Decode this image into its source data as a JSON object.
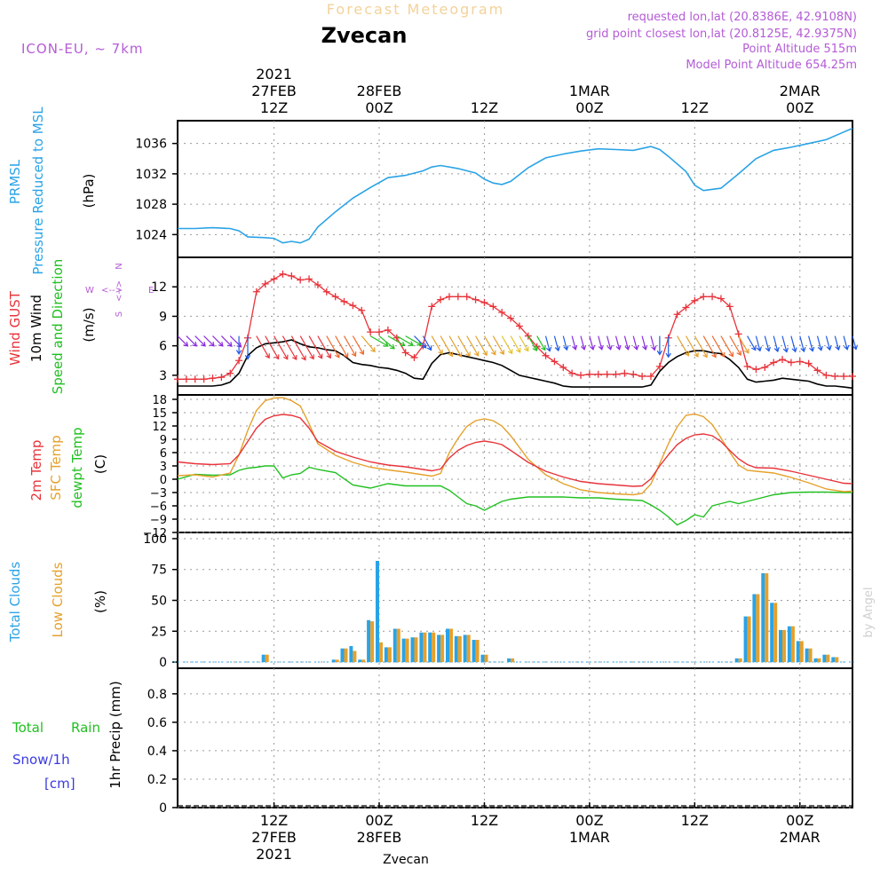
{
  "header": {
    "subtitle": "Forecast Meteogram",
    "location": "Zvecan",
    "model": "ICON-EU, ~ 7km",
    "requested": "requested lon,lat (20.8386E, 42.9108N)",
    "grid_point": "grid point closest lon,lat (20.8125E, 42.9375N)",
    "point_alt": "Point Altitude 515m",
    "model_alt": "Model Point Altitude 654.25m",
    "credit": "by Angel",
    "footer_location": "Zvecan"
  },
  "colors": {
    "pressure": "#2aa3e6",
    "gust": "#e8333a",
    "wind": "#000000",
    "sfc": "#e5a12c",
    "temp": "#e8333a",
    "dew": "#21c021",
    "total_clouds": "#2aa3e6",
    "low_clouds": "#e5a12c",
    "rain": "#21c021",
    "snow": "#3a3ae0",
    "label": "#b55bd6"
  },
  "time_axis": {
    "hours_span": [
      0,
      77
    ],
    "ticks": [
      {
        "h": 11,
        "top": [
          "2021",
          "27FEB",
          "12Z"
        ],
        "bottom": [
          "12Z",
          "27FEB",
          "2021"
        ]
      },
      {
        "h": 23,
        "top": [
          "28FEB",
          "00Z"
        ],
        "bottom": [
          "00Z",
          "28FEB"
        ]
      },
      {
        "h": 35,
        "top": [
          "12Z"
        ],
        "bottom": [
          "12Z"
        ]
      },
      {
        "h": 47,
        "top": [
          "1MAR",
          "00Z"
        ],
        "bottom": [
          "00Z",
          "1MAR"
        ]
      },
      {
        "h": 59,
        "top": [
          "12Z"
        ],
        "bottom": [
          "12Z"
        ]
      },
      {
        "h": 71,
        "top": [
          "2MAR",
          "00Z"
        ],
        "bottom": [
          "00Z",
          "2MAR"
        ]
      }
    ]
  },
  "chart_data": [
    {
      "type": "line",
      "title": "PRMSL Pressure Reduced to MSL",
      "ylabel_lines": [
        "PRMSL",
        "Pressure Reduced to MSL"
      ],
      "unit": "(hPa)",
      "ylim": [
        1021,
        1039
      ],
      "yticks": [
        1024,
        1028,
        1032,
        1036
      ],
      "x_hours": [
        0,
        2,
        4,
        6,
        7,
        8,
        10,
        11,
        12,
        13,
        14,
        15,
        16,
        18,
        20,
        22,
        24,
        26,
        28,
        29,
        30,
        32,
        34,
        35,
        36,
        37,
        38,
        40,
        42,
        44,
        46,
        48,
        50,
        52,
        54,
        55,
        56,
        58,
        59,
        60,
        62,
        64,
        66,
        68,
        70,
        72,
        74,
        76,
        77
      ],
      "series": [
        {
          "name": "PRMSL",
          "values": [
            1024.8,
            1024.8,
            1024.9,
            1024.8,
            1024.5,
            1023.7,
            1023.6,
            1023.5,
            1022.9,
            1023.1,
            1022.9,
            1023.4,
            1025.0,
            1027.0,
            1028.8,
            1030.2,
            1031.5,
            1031.8,
            1032.4,
            1032.9,
            1033.1,
            1032.7,
            1032.1,
            1031.3,
            1030.8,
            1030.6,
            1031.0,
            1032.8,
            1034.1,
            1034.6,
            1035.0,
            1035.3,
            1035.2,
            1035.1,
            1035.6,
            1035.2,
            1034.3,
            1032.3,
            1030.5,
            1029.8,
            1030.1,
            1032.0,
            1034.0,
            1035.1,
            1035.5,
            1036.0,
            1036.5,
            1037.5,
            1038.0
          ]
        }
      ]
    },
    {
      "type": "line",
      "title": "Wind GUST / 10m Wind Speed and Direction",
      "ylabel_lines": [
        "Wind GUST",
        "10m Wind",
        "Speed and Direction"
      ],
      "unit": "(m/s)",
      "ylim": [
        1,
        15
      ],
      "yticks": [
        3,
        6,
        9,
        12
      ],
      "compass": {
        "n": "N",
        "e": "E",
        "s": "S",
        "w": "W",
        "arrow": "<-->"
      },
      "x_hours": [
        0,
        1,
        2,
        3,
        4,
        5,
        6,
        7,
        8,
        9,
        10,
        11,
        12,
        13,
        14,
        15,
        16,
        17,
        18,
        19,
        20,
        21,
        22,
        23,
        24,
        25,
        26,
        27,
        28,
        29,
        30,
        31,
        32,
        33,
        34,
        35,
        36,
        37,
        38,
        39,
        40,
        41,
        42,
        43,
        44,
        45,
        46,
        47,
        48,
        49,
        50,
        51,
        52,
        53,
        54,
        55,
        56,
        57,
        58,
        59,
        60,
        61,
        62,
        63,
        64,
        65,
        66,
        67,
        68,
        69,
        70,
        71,
        72,
        73,
        74,
        75,
        76,
        77
      ],
      "series": [
        {
          "name": "Wind GUST",
          "values": [
            2.6,
            2.6,
            2.6,
            2.6,
            2.7,
            2.8,
            3.2,
            4.5,
            6.8,
            11.5,
            12.3,
            12.8,
            13.3,
            13.1,
            12.7,
            12.8,
            12.2,
            11.5,
            11.0,
            10.5,
            10.1,
            9.6,
            7.4,
            7.4,
            7.6,
            6.8,
            5.3,
            4.8,
            6.0,
            10.0,
            10.7,
            11.0,
            11.0,
            11.0,
            10.7,
            10.4,
            10.0,
            9.4,
            8.8,
            8.0,
            7.0,
            5.9,
            5.0,
            4.4,
            3.8,
            3.2,
            3.0,
            3.1,
            3.1,
            3.1,
            3.1,
            3.2,
            3.1,
            2.9,
            2.9,
            3.9,
            6.8,
            9.2,
            9.9,
            10.6,
            11.0,
            11.0,
            10.8,
            10.0,
            7.2,
            3.9,
            3.6,
            3.8,
            4.3,
            4.6,
            4.3,
            4.4,
            4.2,
            3.5,
            3.0,
            2.9,
            2.9,
            2.9
          ]
        },
        {
          "name": "10m Wind",
          "values": [
            1.9,
            1.9,
            1.9,
            1.9,
            1.9,
            2.0,
            2.3,
            3.2,
            5.0,
            5.8,
            6.2,
            6.3,
            6.4,
            6.6,
            6.2,
            5.9,
            5.8,
            5.6,
            5.5,
            5.0,
            4.3,
            4.1,
            4.0,
            3.8,
            3.7,
            3.5,
            3.2,
            2.7,
            2.6,
            4.2,
            5.1,
            5.3,
            5.1,
            4.9,
            4.7,
            4.5,
            4.3,
            4.0,
            3.5,
            3.0,
            2.8,
            2.6,
            2.4,
            2.2,
            1.9,
            1.8,
            1.8,
            1.8,
            1.8,
            1.8,
            1.8,
            1.8,
            1.8,
            1.8,
            2.0,
            3.4,
            4.3,
            4.9,
            5.3,
            5.5,
            5.5,
            5.3,
            5.2,
            4.6,
            3.8,
            2.6,
            2.3,
            2.4,
            2.5,
            2.7,
            2.6,
            2.5,
            2.4,
            2.1,
            1.9,
            1.9,
            1.8,
            1.7
          ]
        }
      ],
      "wind_dirs_from_deg": [
        315,
        315,
        315,
        315,
        315,
        315,
        315,
        0,
        0,
        330,
        330,
        330,
        330,
        330,
        330,
        330,
        330,
        330,
        330,
        330,
        330,
        320,
        300,
        310,
        300,
        300,
        300,
        315,
        330,
        330,
        330,
        330,
        330,
        330,
        330,
        330,
        330,
        330,
        330,
        330,
        330,
        330,
        345,
        345,
        345,
        345,
        345,
        345,
        345,
        345,
        345,
        345,
        345,
        345,
        345,
        0,
        0,
        330,
        330,
        330,
        330,
        330,
        330,
        330,
        330,
        330,
        345,
        345,
        345,
        345,
        345,
        345,
        345,
        345,
        345,
        345,
        345,
        345
      ],
      "wind_arrow_colors": [
        "#8a2be2",
        "#8a2be2",
        "#8a2be2",
        "#8a2be2",
        "#8a2be2",
        "#8a2be2",
        "#8a2be2",
        "#1e5ae6",
        "#1e5ae6",
        "#e8333a",
        "#e8333a",
        "#e8333a",
        "#e8333a",
        "#e8333a",
        "#e8333a",
        "#e8333a",
        "#e8333a",
        "#ee6a2c",
        "#ee6a2c",
        "#ee6a2c",
        "#ee6a2c",
        "#e5a12c",
        "#21c021",
        "#21c021",
        "#21c021",
        "#21c021",
        "#21c021",
        "#1e5ae6",
        "#1e5ae6",
        "#e5a12c",
        "#e5a12c",
        "#e5a12c",
        "#e5a12c",
        "#e5a12c",
        "#e5a12c",
        "#e5a12c",
        "#e5a12c",
        "#e5c42c",
        "#e5c42c",
        "#e5c42c",
        "#21c021",
        "#21c021",
        "#1e5ae6",
        "#1e5ae6",
        "#1e5ae6",
        "#8a2be2",
        "#8a2be2",
        "#8a2be2",
        "#8a2be2",
        "#8a2be2",
        "#8a2be2",
        "#8a2be2",
        "#8a2be2",
        "#8a2be2",
        "#8a2be2",
        "#1e5ae6",
        "#1e5ae6",
        "#e5a12c",
        "#e5a12c",
        "#e5a12c",
        "#ee6a2c",
        "#ee6a2c",
        "#ee6a2c",
        "#ee6a2c",
        "#e5a12c",
        "#1e5ae6",
        "#1e5ae6",
        "#1e5ae6",
        "#1e5ae6",
        "#1e5ae6",
        "#1e5ae6",
        "#1e5ae6",
        "#1e5ae6",
        "#1e5ae6",
        "#1e5ae6",
        "#1e5ae6",
        "#1e5ae6",
        "#1e5ae6"
      ]
    },
    {
      "type": "line",
      "title": "2m Temp / SFC Temp / dewpt Temp",
      "ylabel_lines": [
        "2m Temp",
        "SFC Temp",
        "dewpt Temp"
      ],
      "unit": "(C)",
      "ylim": [
        -12,
        19
      ],
      "yticks": [
        -12,
        -9,
        -6,
        -3,
        0,
        3,
        6,
        9,
        12,
        15,
        18
      ],
      "x_hours": [
        0,
        2,
        4,
        6,
        7,
        8,
        9,
        10,
        11,
        12,
        13,
        14,
        15,
        16,
        18,
        20,
        22,
        24,
        26,
        28,
        29,
        30,
        31,
        32,
        33,
        34,
        35,
        36,
        37,
        38,
        40,
        42,
        44,
        46,
        48,
        50,
        52,
        53,
        54,
        55,
        56,
        57,
        58,
        59,
        60,
        61,
        62,
        63,
        64,
        65,
        66,
        68,
        70,
        72,
        74,
        76,
        77
      ],
      "series": [
        {
          "name": "2m Temp",
          "values": [
            3.9,
            3.5,
            3.3,
            3.5,
            5.5,
            8.5,
            11.5,
            13.5,
            14.3,
            14.6,
            14.4,
            13.8,
            11.5,
            8.5,
            6.3,
            5.0,
            3.9,
            3.2,
            2.8,
            2.2,
            1.9,
            2.3,
            4.8,
            6.5,
            7.6,
            8.3,
            8.6,
            8.3,
            7.8,
            6.5,
            3.8,
            1.8,
            0.5,
            -0.5,
            -1.0,
            -1.3,
            -1.6,
            -1.5,
            0.1,
            3.0,
            5.5,
            7.8,
            9.2,
            10.0,
            10.2,
            9.8,
            8.5,
            6.5,
            4.6,
            3.3,
            2.6,
            2.5,
            1.8,
            0.9,
            0.0,
            -0.9,
            -1.0
          ]
        },
        {
          "name": "SFC Temp",
          "values": [
            0.8,
            1.0,
            0.5,
            1.4,
            5.5,
            11.0,
            15.5,
            17.7,
            18.3,
            18.4,
            17.7,
            16.5,
            12.5,
            8.0,
            5.4,
            3.8,
            2.7,
            2.1,
            1.6,
            1.0,
            0.7,
            1.3,
            6.0,
            9.2,
            11.9,
            13.2,
            13.6,
            13.2,
            12.0,
            9.8,
            4.5,
            1.0,
            -1.0,
            -2.4,
            -3.0,
            -3.3,
            -3.5,
            -3.2,
            -1.1,
            3.5,
            8.0,
            11.8,
            14.4,
            14.7,
            14.1,
            12.3,
            9.3,
            6.1,
            3.2,
            2.0,
            1.8,
            1.4,
            0.4,
            -0.8,
            -2.2,
            -2.8,
            -2.7
          ]
        },
        {
          "name": "dewpt Temp",
          "values": [
            0.0,
            1.1,
            0.9,
            1.0,
            2.0,
            2.5,
            2.7,
            3.0,
            3.0,
            0.3,
            1.0,
            1.3,
            2.7,
            2.2,
            1.5,
            -1.3,
            -2.0,
            -1.0,
            -1.5,
            -1.5,
            -1.5,
            -1.5,
            -2.5,
            -4.0,
            -5.5,
            -6.0,
            -7.0,
            -6.0,
            -5.0,
            -4.5,
            -4.0,
            -4.0,
            -4.0,
            -4.2,
            -4.2,
            -4.5,
            -4.7,
            -4.8,
            -5.8,
            -7.0,
            -8.5,
            -10.3,
            -9.3,
            -8.0,
            -8.5,
            -6.0,
            -5.5,
            -5.0,
            -5.5,
            -5.0,
            -4.5,
            -3.5,
            -3.0,
            -2.9,
            -2.9,
            -3.0,
            -3.0
          ]
        }
      ]
    },
    {
      "type": "bar",
      "title": "Total Clouds / Low Clouds",
      "ylabel_lines": [
        "Total Clouds",
        "Low Clouds"
      ],
      "unit": "(%)",
      "ylim": [
        -5,
        105
      ],
      "yticks": [
        0,
        25,
        50,
        75,
        100
      ],
      "x_hours": [
        0,
        1,
        2,
        3,
        4,
        5,
        6,
        7,
        8,
        9,
        10,
        11,
        12,
        13,
        14,
        15,
        16,
        17,
        18,
        19,
        20,
        21,
        22,
        23,
        24,
        25,
        26,
        27,
        28,
        29,
        30,
        31,
        32,
        33,
        34,
        35,
        36,
        37,
        38,
        39,
        40,
        41,
        42,
        43,
        44,
        45,
        46,
        47,
        48,
        49,
        50,
        51,
        52,
        53,
        54,
        55,
        56,
        57,
        58,
        59,
        60,
        61,
        62,
        63,
        64,
        65,
        66,
        67,
        68,
        69,
        70,
        71,
        72,
        73,
        74,
        75,
        76,
        77
      ],
      "series": [
        {
          "name": "Total Clouds",
          "values": [
            0,
            0,
            0,
            0,
            0,
            0,
            0,
            0,
            0,
            0,
            6,
            0,
            0,
            0,
            0,
            0,
            0,
            0,
            2,
            11,
            13,
            2,
            34,
            82,
            12,
            27,
            19,
            20,
            24,
            24,
            22,
            27,
            21,
            22,
            18,
            6,
            0,
            0,
            3,
            0,
            0,
            0,
            0,
            0,
            0,
            0,
            0,
            0,
            0,
            0,
            0,
            0,
            0,
            0,
            0,
            0,
            0,
            0,
            0,
            0,
            0,
            0,
            0,
            0,
            3,
            37,
            55,
            72,
            48,
            26,
            29,
            17,
            11,
            3,
            6,
            4,
            0,
            0
          ]
        },
        {
          "name": "Low Clouds",
          "values": [
            0,
            0,
            0,
            0,
            0,
            0,
            0,
            0,
            0,
            0,
            6,
            0,
            0,
            0,
            0,
            0,
            0,
            0,
            2,
            11,
            9,
            2,
            33,
            16,
            12,
            27,
            19,
            20,
            24,
            24,
            22,
            27,
            21,
            22,
            18,
            6,
            0,
            0,
            3,
            0,
            0,
            0,
            0,
            0,
            0,
            0,
            0,
            0,
            0,
            0,
            0,
            0,
            0,
            0,
            0,
            0,
            0,
            0,
            0,
            0,
            0,
            0,
            0,
            0,
            3,
            37,
            55,
            72,
            48,
            26,
            29,
            17,
            11,
            3,
            6,
            4,
            0,
            0
          ]
        }
      ]
    },
    {
      "type": "bar",
      "title": "1hr Precip (mm)",
      "ylabel_lines": [
        "1hr Precip (mm)"
      ],
      "unit": "",
      "ylim": [
        0,
        0.98
      ],
      "yticks": [
        0,
        0.2,
        0.4,
        0.6,
        0.8
      ],
      "ytick_labels": [
        "0",
        "0.2",
        "0.4",
        "0.6",
        "0.8"
      ],
      "legend": {
        "rain_total": "Total",
        "rain_word": "Rain",
        "snow": "Snow/1h",
        "snow_unit": "[cm]"
      },
      "series": [
        {
          "name": "Total Rain",
          "values": []
        },
        {
          "name": "Snow/1h",
          "values": []
        }
      ]
    }
  ]
}
